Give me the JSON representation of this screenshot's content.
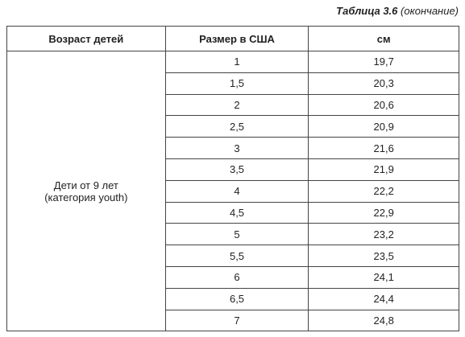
{
  "caption": {
    "number": "Таблица 3.6",
    "note": "(окончание)"
  },
  "table": {
    "headers": [
      "Возраст детей",
      "Размер в США",
      "см"
    ],
    "group": [
      "Дети от 9 лет",
      "(категория youth)"
    ],
    "rows": [
      [
        "1",
        "19,7"
      ],
      [
        "1,5",
        "20,3"
      ],
      [
        "2",
        "20,6"
      ],
      [
        "2,5",
        "20,9"
      ],
      [
        "3",
        "21,6"
      ],
      [
        "3,5",
        "21,9"
      ],
      [
        "4",
        "22,2"
      ],
      [
        "4,5",
        "22,9"
      ],
      [
        "5",
        "23,2"
      ],
      [
        "5,5",
        "23,5"
      ],
      [
        "6",
        "24,1"
      ],
      [
        "6,5",
        "24,4"
      ],
      [
        "7",
        "24,8"
      ]
    ]
  }
}
